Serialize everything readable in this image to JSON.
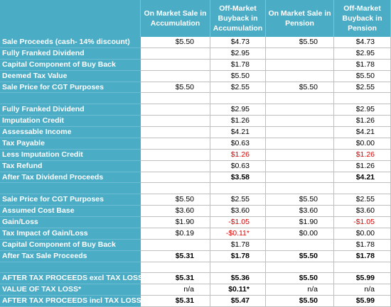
{
  "table": {
    "header": [
      null,
      "On Market Sale in Accumulation",
      "Off-Market Buyback in Accumulation",
      "On Market Sale in Pension",
      "Off-Market Buyback in Pension"
    ],
    "rows": [
      [
        "Sale Proceeds (cash- 14% discount)",
        "$5.50",
        "$4.73",
        "$5.50",
        "$4.73"
      ],
      [
        "Fully Franked Dividend",
        null,
        "$2.95",
        null,
        "$2.95"
      ],
      [
        "Capital Component  of Buy Back",
        null,
        "$1.78",
        null,
        "$1.78"
      ],
      [
        "Deemed Tax Value",
        null,
        "$5.50",
        null,
        "$5.50"
      ],
      [
        "Sale Price for CGT Purposes",
        "$5.50",
        "$2.55",
        "$5.50",
        "$2.55"
      ],
      [
        null,
        null,
        null,
        null,
        null
      ],
      [
        "Fully Franked Dividend",
        null,
        "$2.95",
        null,
        "$2.95"
      ],
      [
        "Imputation Credit",
        null,
        "$1.26",
        null,
        "$1.26"
      ],
      [
        "Assessable Income",
        null,
        "$4.21",
        null,
        "$4.21"
      ],
      [
        "Tax Payable",
        null,
        "$0.63",
        null,
        "$0.00"
      ],
      [
        "Less Imputation Credit",
        null,
        "$1.26",
        null,
        "$1.26"
      ],
      [
        "Tax Refund",
        null,
        "$0.63",
        null,
        "$1.26"
      ],
      [
        "After Tax Dividend Proceeds",
        null,
        "$3.58",
        null,
        "$4.21"
      ],
      [
        null,
        null,
        null,
        null,
        null
      ],
      [
        "Sale Price for CGT Purposes",
        "$5.50",
        "$2.55",
        "$5.50",
        "$2.55"
      ],
      [
        "Assumed Cost Base",
        "$3.60",
        "$3.60",
        "$3.60",
        "$3.60"
      ],
      [
        "Gain/Loss",
        "$1.90",
        "-$1.05",
        "$1.90",
        "-$1.05"
      ],
      [
        "Tax Impact of Gain/Loss",
        "$0.19",
        "-$0.11*",
        "$0.00",
        "$0.00"
      ],
      [
        "Capital Component  of Buy Back",
        null,
        "$1.78",
        null,
        "$1.78"
      ],
      [
        "After Tax Sale Proceeds",
        "$5.31",
        "$1.78",
        "$5.50",
        "$1.78"
      ],
      [
        null,
        null,
        null,
        null,
        null
      ],
      [
        "AFTER TAX PROCEEDS excl TAX LOSS",
        "$5.31",
        "$5.36",
        "$5.50",
        "$5.99"
      ],
      [
        "VALUE OF TAX LOSS*",
        "n/a",
        "$0.11*",
        "n/a",
        "n/a"
      ],
      [
        "AFTER TAX PROCEEDS incl TAX LOSS",
        "$5.31",
        "$5.47",
        "$5.50",
        "$5.99"
      ]
    ]
  }
}
